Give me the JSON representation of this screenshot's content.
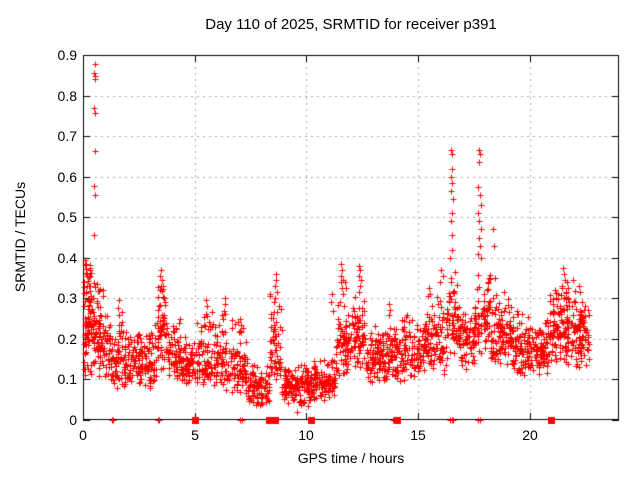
{
  "page": {
    "background": "#ffffff",
    "text_color": "#000000"
  },
  "chart_data": {
    "type": "scatter",
    "title": "Day 110 of 2025, SRMTID for receiver p391",
    "xlabel": "GPS time / hours",
    "ylabel": "SRMTID / TECUs",
    "xlim": [
      0,
      24
    ],
    "ylim": [
      0,
      0.9
    ],
    "xtick_values": [
      0,
      5,
      10,
      15,
      20
    ],
    "xtick_labels": [
      "0",
      "5",
      "10",
      "15",
      "20"
    ],
    "ytick_values": [
      0,
      0.1,
      0.2,
      0.3,
      0.4,
      0.5,
      0.6,
      0.7,
      0.8,
      0.9
    ],
    "ytick_labels": [
      "0",
      "0.1",
      "0.2",
      "0.3",
      "0.4",
      "0.5",
      "0.6",
      "0.7",
      "0.8",
      "0.9"
    ],
    "grid": true,
    "legend": "none",
    "style": {
      "marker_shape": "plus",
      "marker_color": "#ff0000",
      "marker_size": 7,
      "border_color": "#000000",
      "grid_color": "#a8a8a8",
      "background": "#ffffff"
    },
    "segment_columns": [
      "x0",
      "x1",
      "ymin",
      "ymode",
      "ymax",
      "count"
    ],
    "density_segments": [
      [
        0.02,
        0.45,
        0.1,
        0.2,
        0.4,
        90
      ],
      [
        0.45,
        0.78,
        0.1,
        0.18,
        0.36,
        55
      ],
      [
        0.78,
        1.3,
        0.08,
        0.15,
        0.3,
        55
      ],
      [
        1.3,
        1.55,
        0.06,
        0.12,
        0.22,
        25
      ],
      [
        1.55,
        1.75,
        0.09,
        0.15,
        0.3,
        25
      ],
      [
        1.75,
        3.3,
        0.07,
        0.125,
        0.24,
        150
      ],
      [
        3.3,
        3.75,
        0.12,
        0.2,
        0.345,
        55
      ],
      [
        3.75,
        4.2,
        0.09,
        0.14,
        0.27,
        45
      ],
      [
        4.2,
        5.1,
        0.08,
        0.125,
        0.22,
        85
      ],
      [
        5.1,
        5.75,
        0.07,
        0.12,
        0.28,
        65
      ],
      [
        5.75,
        6.6,
        0.07,
        0.12,
        0.28,
        80
      ],
      [
        6.6,
        7.4,
        0.05,
        0.11,
        0.25,
        75
      ],
      [
        7.4,
        8.35,
        0.03,
        0.08,
        0.14,
        90
      ],
      [
        8.35,
        8.9,
        0.08,
        0.15,
        0.33,
        60
      ],
      [
        8.9,
        10.35,
        0.03,
        0.075,
        0.14,
        140
      ],
      [
        10.35,
        11.3,
        0.04,
        0.09,
        0.17,
        90
      ],
      [
        11.3,
        12.05,
        0.1,
        0.16,
        0.3,
        75
      ],
      [
        12.05,
        12.65,
        0.12,
        0.2,
        0.33,
        65
      ],
      [
        12.65,
        13.55,
        0.08,
        0.14,
        0.24,
        95
      ],
      [
        13.55,
        14.25,
        0.09,
        0.15,
        0.26,
        70
      ],
      [
        14.25,
        15.3,
        0.09,
        0.145,
        0.27,
        100
      ],
      [
        15.3,
        16.3,
        0.11,
        0.17,
        0.32,
        100
      ],
      [
        16.3,
        16.8,
        0.15,
        0.23,
        0.4,
        55
      ],
      [
        16.8,
        17.55,
        0.12,
        0.19,
        0.31,
        75
      ],
      [
        17.55,
        18.25,
        0.15,
        0.25,
        0.4,
        70
      ],
      [
        18.25,
        19.2,
        0.12,
        0.2,
        0.33,
        100
      ],
      [
        19.2,
        20.9,
        0.1,
        0.16,
        0.28,
        170
      ],
      [
        20.9,
        21.35,
        0.12,
        0.21,
        0.34,
        55
      ],
      [
        21.35,
        22.05,
        0.13,
        0.23,
        0.38,
        85
      ],
      [
        22.05,
        22.65,
        0.11,
        0.2,
        0.32,
        75
      ]
    ],
    "explicit_points": [
      [
        0.52,
        0.878
      ],
      [
        0.5,
        0.856
      ],
      [
        0.55,
        0.848
      ],
      [
        0.53,
        0.84
      ],
      [
        0.5,
        0.77
      ],
      [
        0.54,
        0.756
      ],
      [
        0.52,
        0.664
      ],
      [
        0.5,
        0.578
      ],
      [
        0.53,
        0.555
      ],
      [
        0.51,
        0.455
      ],
      [
        0.08,
        0.395
      ],
      [
        0.12,
        0.385
      ],
      [
        0.3,
        0.37
      ],
      [
        0.2,
        0.355
      ],
      [
        0.05,
        0.34
      ],
      [
        0.88,
        0.32
      ],
      [
        0.9,
        0.305
      ],
      [
        1.6,
        0.295
      ],
      [
        1.58,
        0.275
      ],
      [
        1.63,
        0.26
      ],
      [
        3.5,
        0.37
      ],
      [
        3.47,
        0.355
      ],
      [
        3.53,
        0.345
      ],
      [
        3.56,
        0.33
      ],
      [
        3.44,
        0.32
      ],
      [
        4.3,
        0.24
      ],
      [
        4.34,
        0.25
      ],
      [
        5.52,
        0.295
      ],
      [
        5.55,
        0.28
      ],
      [
        5.5,
        0.262
      ],
      [
        6.35,
        0.3
      ],
      [
        6.38,
        0.285
      ],
      [
        6.32,
        0.27
      ],
      [
        7.05,
        0.25
      ],
      [
        7.08,
        0.235
      ],
      [
        7.02,
        0.22
      ],
      [
        8.62,
        0.36
      ],
      [
        8.65,
        0.345
      ],
      [
        8.6,
        0.33
      ],
      [
        8.67,
        0.315
      ],
      [
        8.58,
        0.3
      ],
      [
        9.58,
        0.02
      ],
      [
        11.15,
        0.31
      ],
      [
        11.12,
        0.29
      ],
      [
        11.18,
        0.27
      ],
      [
        11.55,
        0.385
      ],
      [
        11.6,
        0.37
      ],
      [
        11.57,
        0.355
      ],
      [
        11.62,
        0.345
      ],
      [
        11.53,
        0.34
      ],
      [
        11.58,
        0.325
      ],
      [
        11.64,
        0.31
      ],
      [
        11.75,
        0.34
      ],
      [
        11.78,
        0.325
      ],
      [
        12.38,
        0.38
      ],
      [
        12.42,
        0.37
      ],
      [
        12.35,
        0.355
      ],
      [
        12.45,
        0.345
      ],
      [
        12.4,
        0.33
      ],
      [
        12.37,
        0.315
      ],
      [
        13.72,
        0.285
      ],
      [
        13.76,
        0.272
      ],
      [
        13.7,
        0.26
      ],
      [
        15.5,
        0.325
      ],
      [
        15.55,
        0.31
      ],
      [
        16.05,
        0.37
      ],
      [
        16.1,
        0.355
      ],
      [
        15.98,
        0.34
      ],
      [
        16.48,
        0.665
      ],
      [
        16.52,
        0.655
      ],
      [
        16.5,
        0.62
      ],
      [
        16.46,
        0.6
      ],
      [
        16.53,
        0.585
      ],
      [
        16.49,
        0.565
      ],
      [
        16.55,
        0.545
      ],
      [
        16.51,
        0.51
      ],
      [
        16.47,
        0.49
      ],
      [
        16.54,
        0.455
      ],
      [
        16.5,
        0.42
      ],
      [
        16.44,
        0.4
      ],
      [
        17.72,
        0.665
      ],
      [
        17.78,
        0.655
      ],
      [
        17.75,
        0.635
      ],
      [
        17.7,
        0.575
      ],
      [
        17.76,
        0.555
      ],
      [
        17.82,
        0.53
      ],
      [
        17.68,
        0.51
      ],
      [
        17.74,
        0.49
      ],
      [
        17.8,
        0.47
      ],
      [
        17.73,
        0.45
      ],
      [
        17.77,
        0.43
      ],
      [
        17.7,
        0.41
      ],
      [
        17.84,
        0.4
      ],
      [
        18.38,
        0.47
      ],
      [
        18.42,
        0.43
      ],
      [
        18.45,
        0.35
      ],
      [
        21.5,
        0.375
      ],
      [
        21.55,
        0.36
      ],
      [
        21.6,
        0.345
      ],
      [
        21.45,
        0.33
      ],
      [
        21.65,
        0.34
      ],
      [
        21.7,
        0.325
      ],
      [
        22.2,
        0.33
      ],
      [
        22.25,
        0.315
      ]
    ],
    "axis_markers": {
      "plus_x": [
        1.3,
        1.36,
        3.36,
        3.42,
        7.05,
        7.1,
        13.86,
        16.44,
        16.5,
        16.56,
        17.7,
        17.76
      ],
      "square_x": [
        5.03,
        8.32,
        8.58,
        10.22,
        14.06,
        20.94
      ]
    }
  }
}
